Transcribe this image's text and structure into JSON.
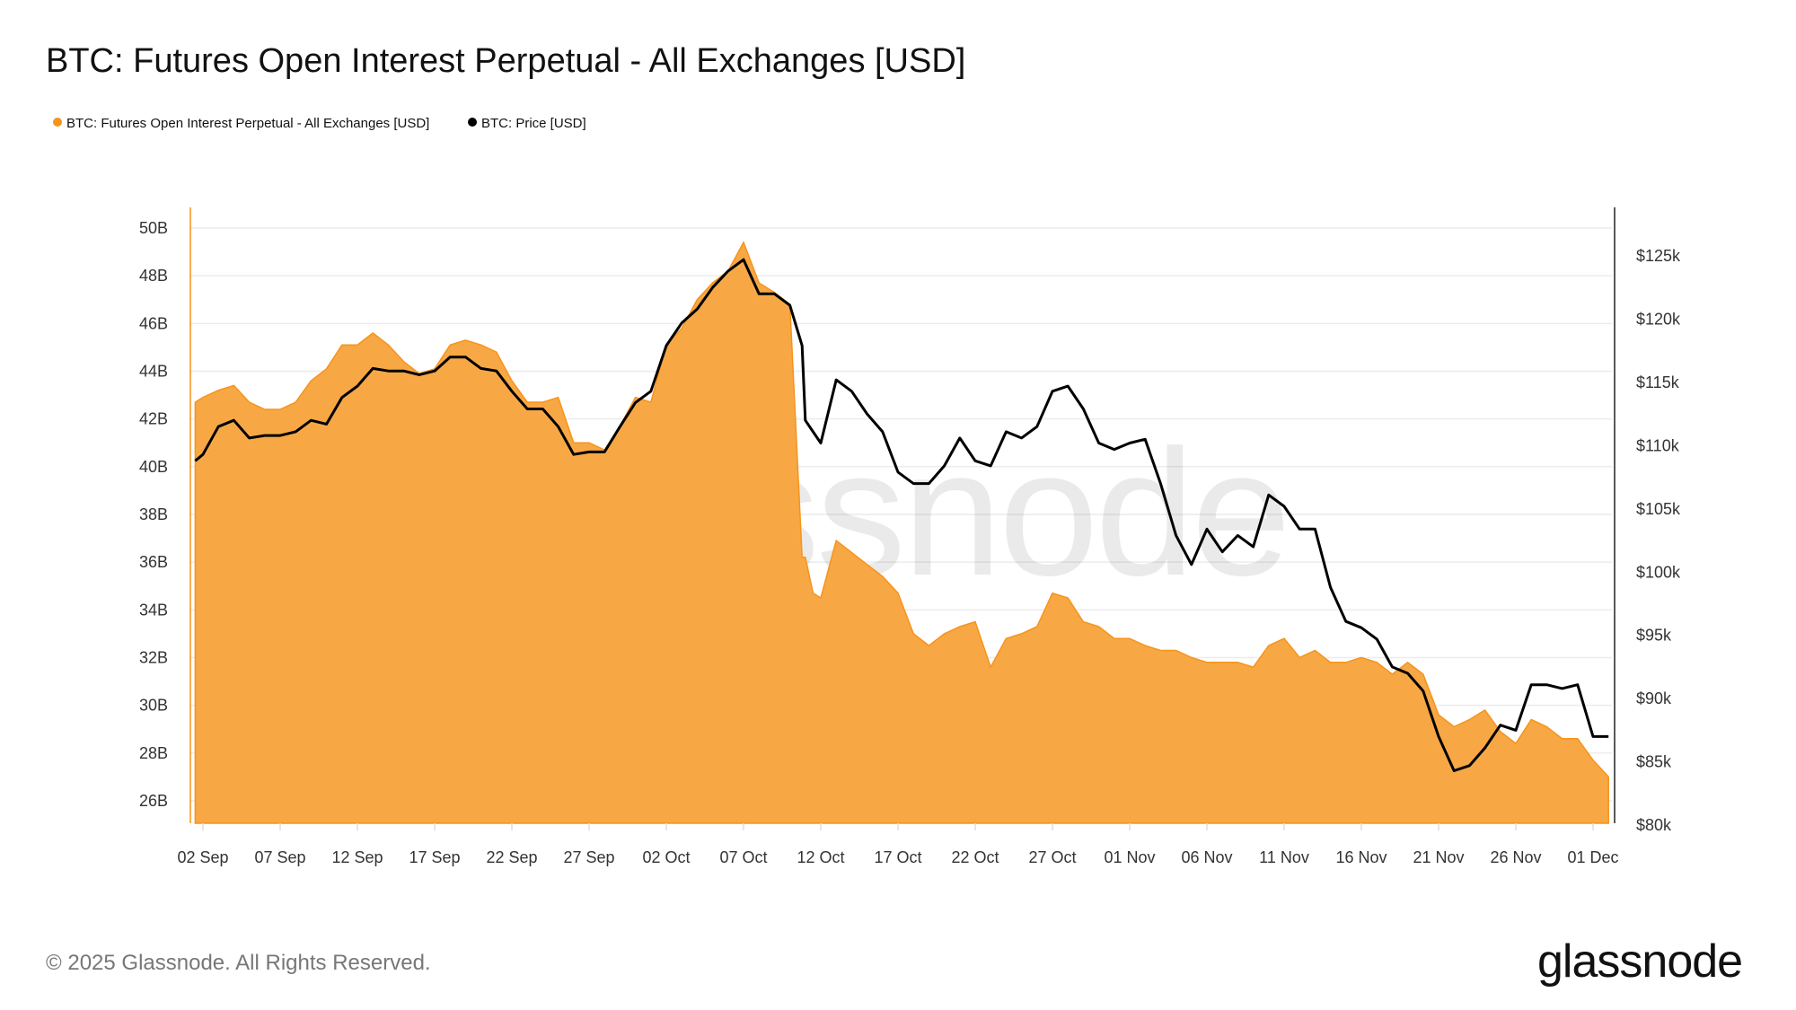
{
  "title": "BTC: Futures Open Interest Perpetual - All Exchanges [USD]",
  "footer": "© 2025 Glassnode. All Rights Reserved.",
  "logo_text": "glassnode",
  "watermark_text": "glassnode",
  "colors": {
    "open_interest": "#f7931a",
    "open_interest_fill": "#f7a845",
    "price": "#000000",
    "grid": "#ececec"
  },
  "chart_data": {
    "type": "area+line",
    "title": "BTC: Futures Open Interest Perpetual - All Exchanges [USD]",
    "legend_position": "top-left",
    "grid": true,
    "x_ticks": [
      "02 Sep",
      "07 Sep",
      "12 Sep",
      "17 Sep",
      "22 Sep",
      "27 Sep",
      "02 Oct",
      "07 Oct",
      "12 Oct",
      "17 Oct",
      "22 Oct",
      "27 Oct",
      "01 Nov",
      "06 Nov",
      "11 Nov",
      "16 Nov",
      "21 Nov",
      "26 Nov",
      "01 Dec"
    ],
    "x_tick_dates": [
      "2025-09-02",
      "2025-09-07",
      "2025-09-12",
      "2025-09-17",
      "2025-09-22",
      "2025-09-27",
      "2025-10-02",
      "2025-10-07",
      "2025-10-12",
      "2025-10-17",
      "2025-10-22",
      "2025-10-27",
      "2025-11-01",
      "2025-11-06",
      "2025-11-11",
      "2025-11-16",
      "2025-11-21",
      "2025-11-26",
      "2025-12-01"
    ],
    "y_left": {
      "ticks": [
        "26B",
        "28B",
        "30B",
        "32B",
        "34B",
        "36B",
        "38B",
        "40B",
        "42B",
        "44B",
        "46B",
        "48B",
        "50B"
      ],
      "tick_values": [
        26,
        28,
        30,
        32,
        34,
        36,
        38,
        40,
        42,
        44,
        46,
        48,
        50
      ],
      "unit": "B USD",
      "range": [
        25.5,
        50.9
      ]
    },
    "y_right": {
      "ticks": [
        "$80k",
        "$85k",
        "$90k",
        "$95k",
        "$100k",
        "$105k",
        "$110k",
        "$115k",
        "$120k",
        "$125k"
      ],
      "tick_values": [
        80,
        85,
        90,
        95,
        100,
        105,
        110,
        115,
        120,
        125
      ],
      "unit": "k USD",
      "range": [
        80,
        128.8
      ]
    },
    "x": [
      "2025-09-01T12:00",
      "2025-09-02",
      "2025-09-03",
      "2025-09-04",
      "2025-09-05",
      "2025-09-06",
      "2025-09-07",
      "2025-09-08",
      "2025-09-09",
      "2025-09-10",
      "2025-09-11",
      "2025-09-12",
      "2025-09-13",
      "2025-09-14",
      "2025-09-15",
      "2025-09-16",
      "2025-09-17",
      "2025-09-18",
      "2025-09-19",
      "2025-09-20",
      "2025-09-21",
      "2025-09-22",
      "2025-09-23",
      "2025-09-24",
      "2025-09-25",
      "2025-09-26",
      "2025-09-27",
      "2025-09-28",
      "2025-09-29",
      "2025-09-30",
      "2025-10-01",
      "2025-10-02",
      "2025-10-03",
      "2025-10-04",
      "2025-10-05",
      "2025-10-06",
      "2025-10-07",
      "2025-10-08",
      "2025-10-09",
      "2025-10-10",
      "2025-10-10T19:00",
      "2025-10-11",
      "2025-10-11T12:00",
      "2025-10-12",
      "2025-10-13",
      "2025-10-14",
      "2025-10-15",
      "2025-10-16",
      "2025-10-17",
      "2025-10-18",
      "2025-10-19",
      "2025-10-20",
      "2025-10-21",
      "2025-10-22",
      "2025-10-23",
      "2025-10-24",
      "2025-10-25",
      "2025-10-26",
      "2025-10-27",
      "2025-10-28",
      "2025-10-29",
      "2025-10-30",
      "2025-10-31",
      "2025-11-01",
      "2025-11-02",
      "2025-11-03",
      "2025-11-04",
      "2025-11-05",
      "2025-11-06",
      "2025-11-07",
      "2025-11-08",
      "2025-11-09",
      "2025-11-10",
      "2025-11-11",
      "2025-11-12",
      "2025-11-13",
      "2025-11-14",
      "2025-11-15",
      "2025-11-16",
      "2025-11-17",
      "2025-11-18",
      "2025-11-19",
      "2025-11-20",
      "2025-11-21",
      "2025-11-22",
      "2025-11-23",
      "2025-11-24",
      "2025-11-25",
      "2025-11-26",
      "2025-11-27",
      "2025-11-28",
      "2025-11-29",
      "2025-11-30",
      "2025-12-01",
      "2025-12-02"
    ],
    "series": [
      {
        "name": "BTC: Futures Open Interest Perpetual - All Exchanges [USD]",
        "axis": "left",
        "unit": "B USD",
        "values": [
          42.7,
          42.9,
          43.2,
          43.4,
          42.7,
          42.4,
          42.4,
          42.7,
          43.6,
          44.1,
          45.1,
          45.1,
          45.6,
          45.1,
          44.4,
          43.9,
          44.1,
          45.1,
          45.3,
          45.1,
          44.8,
          43.6,
          42.7,
          42.7,
          42.9,
          41.0,
          41.0,
          40.7,
          41.7,
          42.9,
          42.7,
          45.1,
          45.8,
          47.0,
          47.7,
          48.2,
          49.4,
          47.7,
          47.3,
          46.8,
          36.2,
          36.2,
          34.7,
          34.5,
          36.9,
          36.4,
          35.9,
          35.4,
          34.7,
          33.0,
          32.5,
          33.0,
          33.3,
          33.5,
          31.6,
          32.8,
          33.0,
          33.3,
          34.7,
          34.5,
          33.5,
          33.3,
          32.8,
          32.8,
          32.5,
          32.3,
          32.3,
          32.0,
          31.8,
          31.8,
          31.8,
          31.6,
          32.5,
          32.8,
          32.0,
          32.3,
          31.8,
          31.8,
          32.0,
          31.8,
          31.3,
          31.8,
          31.3,
          29.6,
          29.1,
          29.4,
          29.8,
          28.9,
          28.4,
          29.4,
          29.1,
          28.6,
          28.6,
          27.7,
          27.0
        ]
      },
      {
        "name": "BTC: Price [USD]",
        "axis": "right",
        "unit": "k USD",
        "values": [
          108.8,
          109.3,
          111.5,
          112.0,
          110.6,
          110.8,
          110.8,
          111.1,
          112.0,
          111.7,
          113.8,
          114.7,
          116.1,
          115.9,
          115.9,
          115.6,
          115.9,
          117.0,
          117.0,
          116.1,
          115.9,
          114.3,
          112.9,
          112.9,
          111.5,
          109.3,
          109.5,
          109.5,
          111.5,
          113.4,
          114.3,
          117.9,
          119.7,
          120.8,
          122.5,
          123.8,
          124.7,
          122.0,
          122.0,
          121.1,
          117.9,
          112.0,
          111.1,
          110.2,
          115.2,
          114.3,
          112.5,
          111.1,
          107.9,
          107.0,
          107.0,
          108.4,
          110.6,
          108.8,
          108.4,
          111.1,
          110.6,
          111.5,
          114.3,
          114.7,
          112.9,
          110.2,
          109.7,
          110.2,
          110.5,
          107.0,
          102.9,
          100.6,
          103.4,
          101.6,
          102.9,
          102.0,
          106.1,
          105.2,
          103.4,
          103.4,
          98.8,
          96.1,
          95.6,
          94.7,
          92.5,
          92.0,
          90.6,
          87.0,
          84.3,
          84.7,
          86.1,
          87.9,
          87.5,
          91.1,
          91.1,
          90.8,
          91.1,
          87.0,
          87.0
        ]
      }
    ]
  }
}
